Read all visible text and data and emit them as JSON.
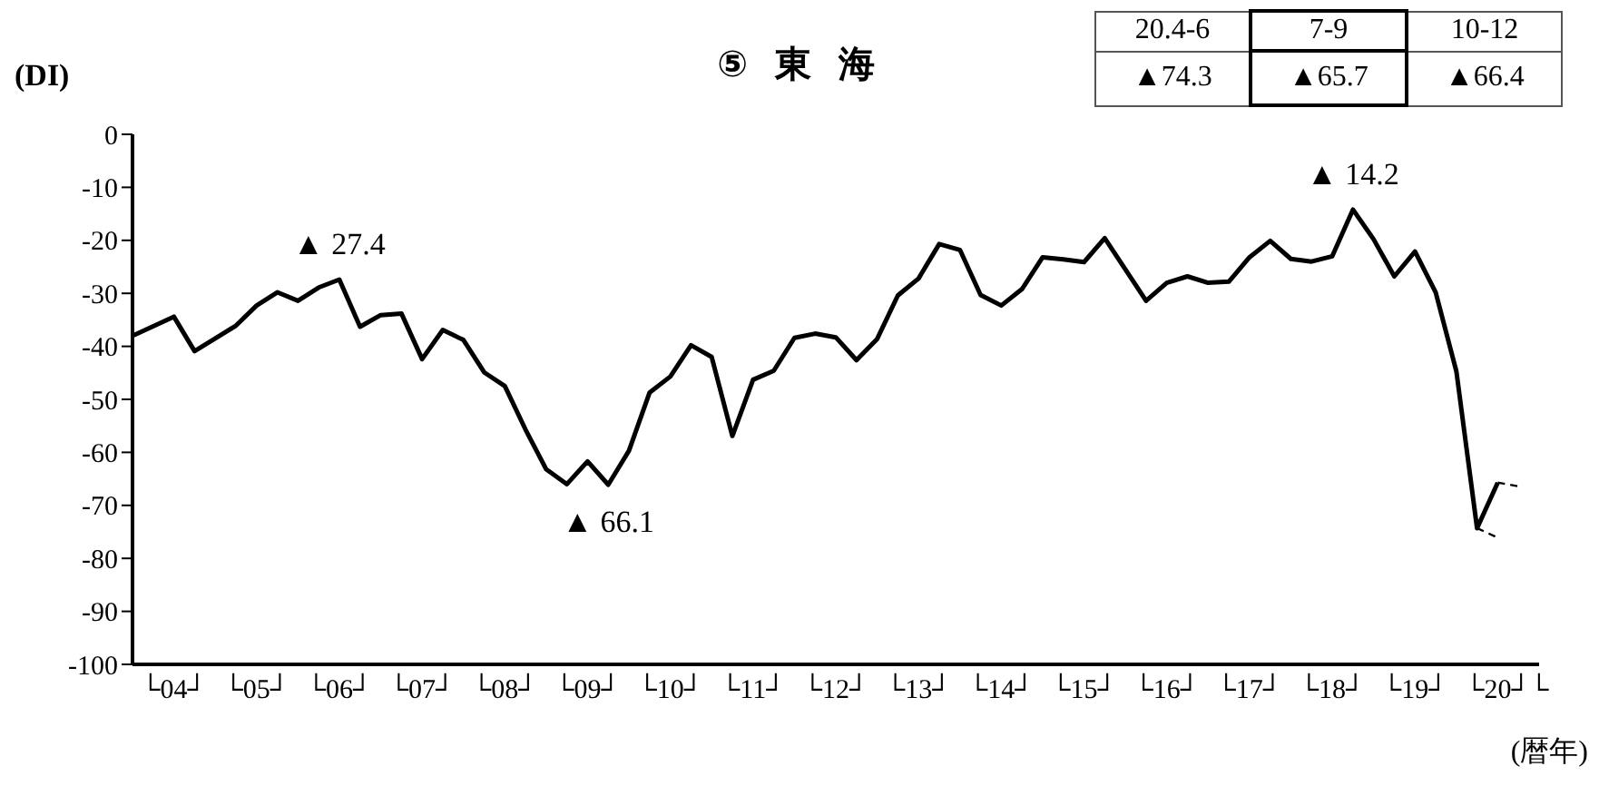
{
  "chart_data": {
    "type": "line",
    "title": "⑤ 東 海",
    "ylabel": "(DI)",
    "xlabel": "(暦年)",
    "categories": [
      null,
      null,
      "└04┘",
      null,
      null,
      null,
      "└05┘",
      null,
      null,
      null,
      "└06┘",
      null,
      null,
      null,
      "└07┘",
      null,
      null,
      null,
      "└08┘",
      null,
      null,
      null,
      "└09┘",
      null,
      null,
      null,
      "└10┘",
      null,
      null,
      null,
      "└11┘",
      null,
      null,
      null,
      "└12┘",
      null,
      null,
      null,
      "└13┘",
      null,
      null,
      null,
      "└14┘",
      null,
      null,
      null,
      "└15┘",
      null,
      null,
      null,
      "└16┘",
      null,
      null,
      null,
      "└17┘",
      null,
      null,
      null,
      "└18┘",
      null,
      null,
      null,
      "└19┘",
      null,
      null,
      null,
      "└20┘",
      null,
      "└"
    ],
    "series": [
      {
        "color": "#000000",
        "line_style": "solid",
        "values": [
          -38.0,
          -36.2,
          -34.4,
          -40.9,
          -38.5,
          -36.1,
          -32.3,
          -29.8,
          -31.4,
          -28.9,
          -27.4,
          -36.3,
          -34.1,
          -33.8,
          -42.4,
          -36.9,
          -38.8,
          -44.9,
          -47.5,
          -55.7,
          -63.2,
          -66.0,
          -61.7,
          -66.1,
          -59.7,
          -48.7,
          -45.7,
          -39.8,
          -42.0,
          -56.9,
          -46.3,
          -44.6,
          -38.4,
          -37.6,
          -38.3,
          -42.6,
          -38.6,
          -30.4,
          -27.2,
          -20.7,
          -21.8,
          -30.3,
          -32.3,
          -29.2,
          -23.2,
          -23.6,
          -24.1,
          -19.6,
          -25.5,
          -31.4,
          -28.0,
          -26.8,
          -28.0,
          -27.8,
          -23.2,
          -20.1,
          -23.5,
          -24.0,
          -23.0,
          -14.2,
          -19.8,
          -26.8,
          -22.1,
          -29.8,
          -44.7,
          -74.3,
          -65.7,
          null,
          null
        ]
      },
      {
        "color": "#000000",
        "line_style": "dashed",
        "values": [
          null,
          null,
          null,
          null,
          null,
          null,
          null,
          null,
          null,
          null,
          null,
          null,
          null,
          null,
          null,
          null,
          null,
          null,
          null,
          null,
          null,
          null,
          null,
          null,
          null,
          null,
          null,
          null,
          null,
          null,
          null,
          null,
          null,
          null,
          null,
          null,
          null,
          null,
          null,
          null,
          null,
          null,
          null,
          null,
          null,
          null,
          null,
          null,
          null,
          null,
          null,
          null,
          null,
          null,
          null,
          null,
          null,
          null,
          null,
          null,
          null,
          null,
          null,
          null,
          null,
          -74.3,
          -76.1,
          null,
          null
        ]
      },
      {
        "color": "#000000",
        "line_style": "dashed",
        "values": [
          null,
          null,
          null,
          null,
          null,
          null,
          null,
          null,
          null,
          null,
          null,
          null,
          null,
          null,
          null,
          null,
          null,
          null,
          null,
          null,
          null,
          null,
          null,
          null,
          null,
          null,
          null,
          null,
          null,
          null,
          null,
          null,
          null,
          null,
          null,
          null,
          null,
          null,
          null,
          null,
          null,
          null,
          null,
          null,
          null,
          null,
          null,
          null,
          null,
          null,
          null,
          null,
          null,
          null,
          null,
          null,
          null,
          null,
          null,
          null,
          null,
          null,
          null,
          null,
          null,
          null,
          -65.7,
          -66.4,
          null
        ]
      }
    ],
    "ylim": [
      -100,
      0
    ],
    "yticks": [
      0,
      -10,
      -20,
      -30,
      -40,
      -50,
      -60,
      -70,
      -80,
      -90,
      -100
    ],
    "grid": false,
    "annotations": [
      "20.4-6",
      "7-9",
      "10-12",
      "▲74.3",
      "▲65.7",
      "▲66.4",
      {
        "text": "▲ 27.4",
        "x": "└06┘",
        "y": -27.4
      },
      {
        "text": "▲ 66.1",
        "y": -66.1
      },
      {
        "text": "▲ 14.2",
        "y": -14.2
      }
    ]
  }
}
